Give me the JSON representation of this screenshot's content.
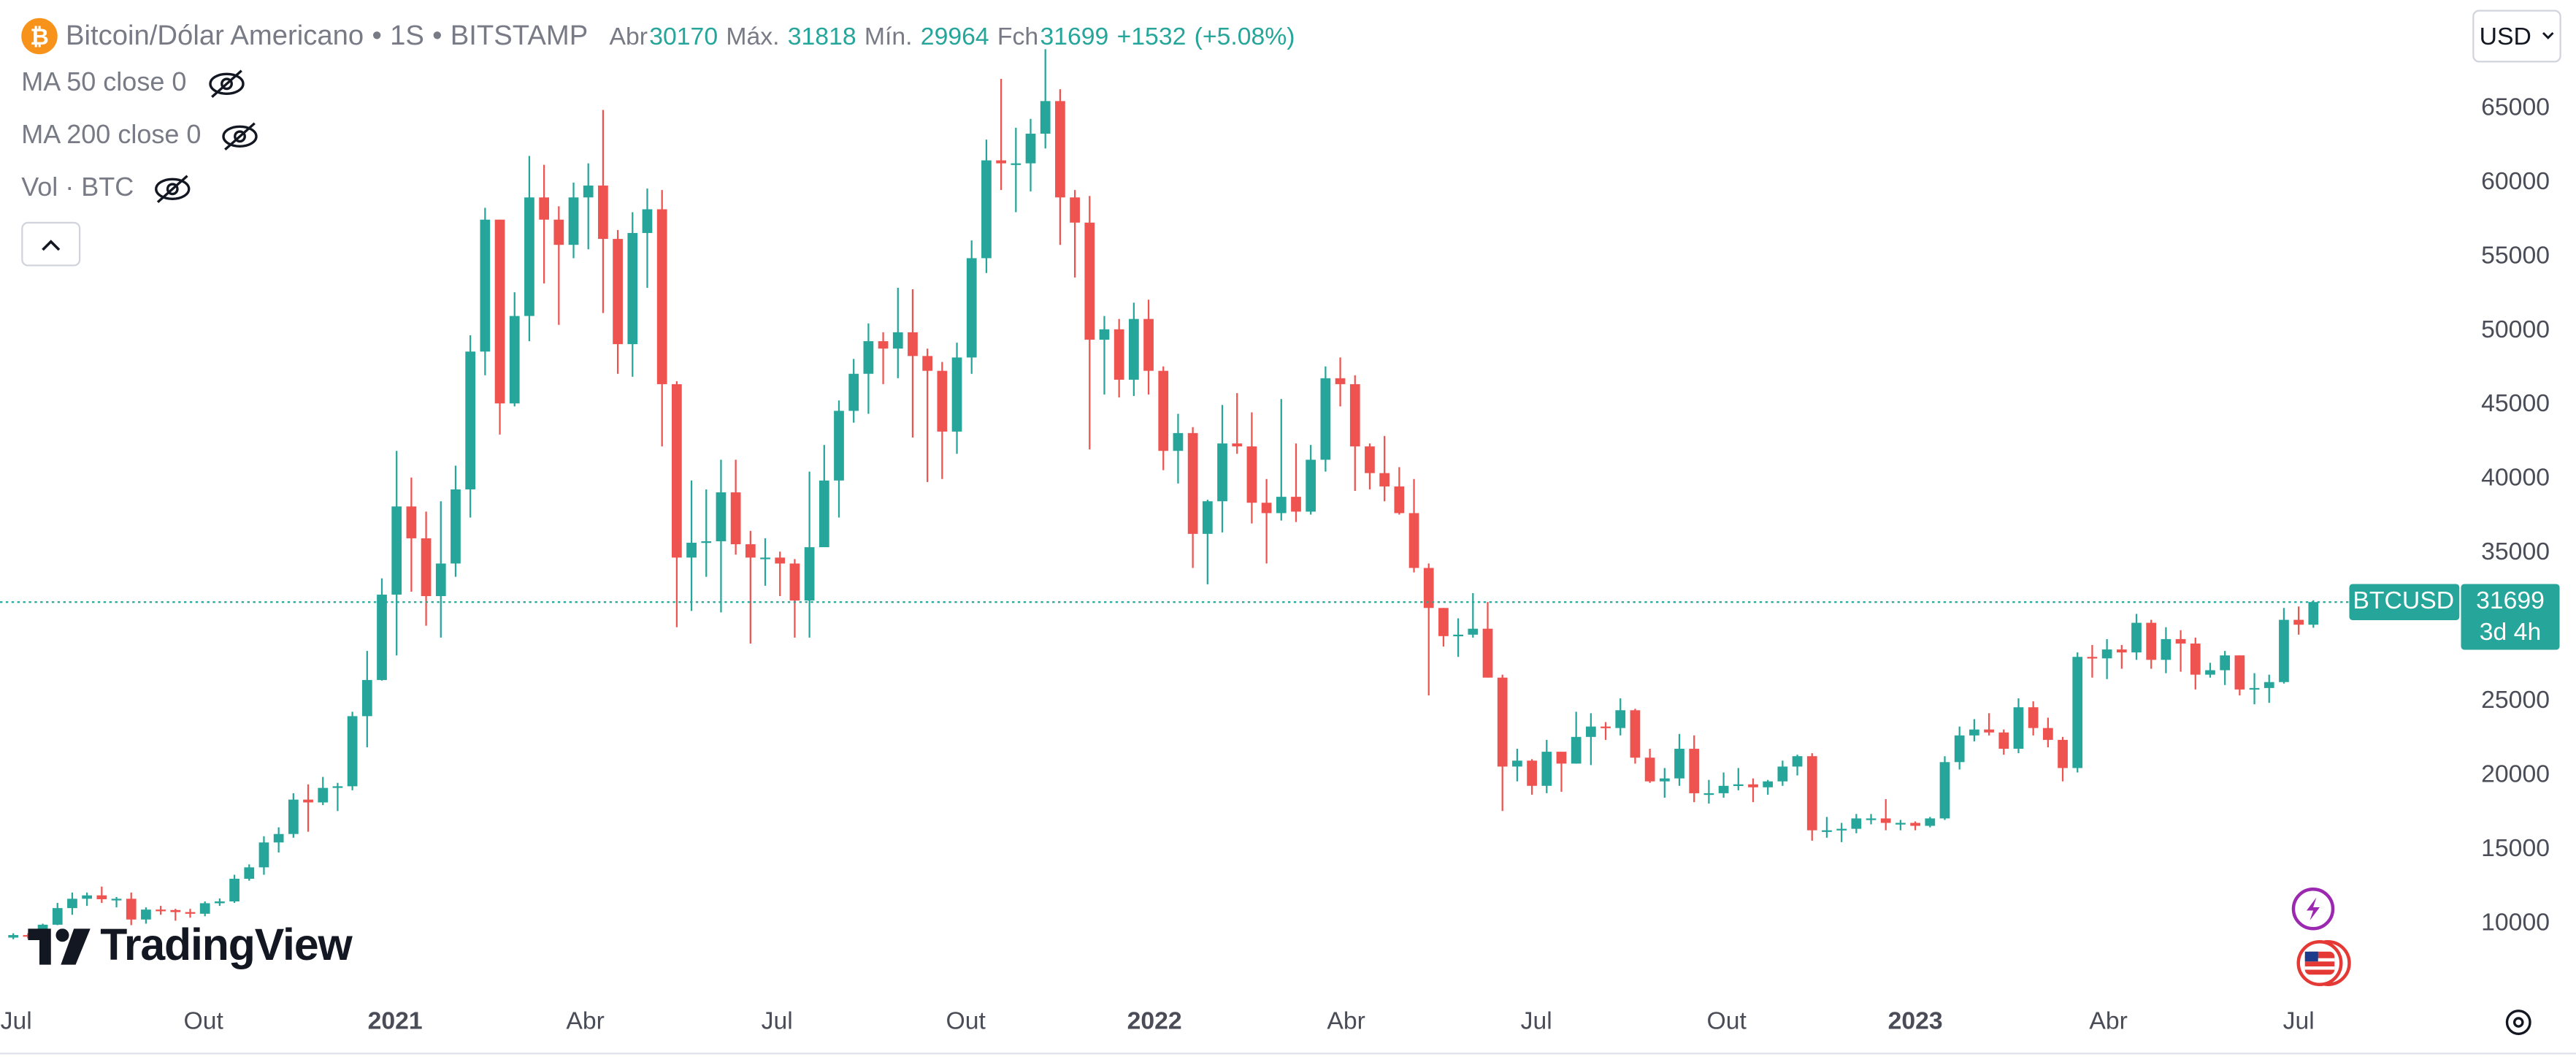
{
  "header": {
    "symbol": "Bitcoin/Dólar Americano",
    "interval": "1S",
    "exchange": "BITSTAMP",
    "open_label": "Abr",
    "high_label": "Máx.",
    "low_label": "Mín.",
    "close_label": "Fch",
    "change": "+1532",
    "change_pct": "(+5.08%)",
    "currency": "USD"
  },
  "indicators": [
    "MA 50 close 0",
    "MA 200 close 0",
    "Vol · BTC"
  ],
  "brand": "TradingView",
  "chart_data": {
    "type": "candlestick",
    "symbol_label": "BTCUSD",
    "countdown": "3d 4h",
    "up_color": "#26a69a",
    "down_color": "#ef5350",
    "grid": false,
    "xlim": [
      -0.9,
      165.9
    ],
    "ylim": [
      5230,
      72320
    ],
    "yticks": [
      10000,
      15000,
      20000,
      25000,
      30000,
      35000,
      40000,
      45000,
      50000,
      55000,
      60000,
      65000
    ],
    "xticks": [
      {
        "value": 0.2,
        "label": "Jul"
      },
      {
        "value": 12.9,
        "label": "Out"
      },
      {
        "value": 25.9,
        "label": "2021"
      },
      {
        "value": 38.8,
        "label": "Abr"
      },
      {
        "value": 51.8,
        "label": "Jul"
      },
      {
        "value": 64.6,
        "label": "Out"
      },
      {
        "value": 77.4,
        "label": "2022"
      },
      {
        "value": 90.4,
        "label": "Abr"
      },
      {
        "value": 103.3,
        "label": "Jul"
      },
      {
        "value": 116.2,
        "label": "Out"
      },
      {
        "value": 129.0,
        "label": "2023"
      },
      {
        "value": 142.1,
        "label": "Abr"
      },
      {
        "value": 155.0,
        "label": "Jul"
      }
    ],
    "open": [
      9060,
      9230,
      9160,
      9930,
      11050,
      11680,
      11910,
      11650,
      11680,
      10280,
      10950,
      10920,
      10780,
      10670,
      11380,
      11500,
      13030,
      13800,
      15480,
      16050,
      18370,
      18180,
      19160,
      19270,
      24000,
      26440,
      32200,
      38150,
      36000,
      32100,
      34300,
      39300,
      48600,
      57500,
      45100,
      51000,
      59000,
      57500,
      55800,
      59000,
      59800,
      56200,
      49100,
      56600,
      58200,
      46400,
      34700,
      35700,
      35800,
      39100,
      35600,
      34700,
      34700,
      34300,
      31800,
      35400,
      39900,
      44600,
      47100,
      49300,
      48800,
      49900,
      48300,
      47300,
      43200,
      48200,
      54900,
      61500,
      61300,
      61300,
      63300,
      65500,
      59000,
      57300,
      49400,
      50100,
      46700,
      50800,
      47300,
      41900,
      43100,
      36300,
      38500,
      42400,
      42200,
      38400,
      37700,
      38800,
      37800,
      41300,
      46800,
      46400,
      42200,
      40400,
      39500,
      37700,
      34000,
      31300,
      29400,
      29500,
      29900,
      26600,
      20600,
      21000,
      19300,
      21600,
      20800,
      22600,
      23300,
      23200,
      24400,
      21200,
      19600,
      19800,
      21800,
      18800,
      18800,
      19300,
      19400,
      19200,
      19600,
      20600,
      21300,
      16300,
      16300,
      16400,
      17100,
      17100,
      16800,
      16800,
      16600,
      17100,
      20900,
      22700,
      23100,
      22900,
      21800,
      24600,
      23200,
      22400,
      20500,
      28000,
      27900,
      28500,
      28300,
      30300,
      27800,
      29200,
      28900,
      26800,
      27100,
      28100,
      25800,
      25900,
      26300,
      30500,
      30170
    ],
    "high": [
      9350,
      9350,
      10000,
      11400,
      12100,
      12100,
      12500,
      11800,
      12100,
      11100,
      11200,
      11000,
      11000,
      11500,
      11700,
      13300,
      14000,
      15900,
      16500,
      18800,
      19400,
      19900,
      19500,
      24300,
      28400,
      33300,
      41900,
      40100,
      37800,
      38500,
      40900,
      49700,
      58300,
      57500,
      52600,
      61800,
      61200,
      58400,
      60000,
      61300,
      64900,
      56800,
      58000,
      59600,
      59500,
      46600,
      39900,
      39300,
      41300,
      41300,
      36500,
      36000,
      35100,
      34600,
      40500,
      42300,
      45300,
      48100,
      50500,
      49900,
      52900,
      52800,
      48800,
      47900,
      49200,
      56100,
      62900,
      67000,
      63700,
      64300,
      69000,
      66300,
      59500,
      59100,
      51000,
      50800,
      51900,
      52100,
      47600,
      44400,
      43500,
      38600,
      45000,
      45800,
      44500,
      40000,
      45400,
      42400,
      42300,
      47600,
      48200,
      47000,
      42400,
      42900,
      40800,
      40000,
      34300,
      31300,
      30600,
      32300,
      31700,
      26800,
      21800,
      21100,
      22400,
      21600,
      24300,
      24200,
      23600,
      25200,
      24500,
      21800,
      20500,
      22800,
      22700,
      19700,
      20200,
      20500,
      19800,
      19700,
      21000,
      21400,
      21500,
      17200,
      16800,
      17400,
      17400,
      18400,
      17000,
      16900,
      17200,
      21300,
      23300,
      23800,
      24200,
      23100,
      25200,
      25000,
      23900,
      22600,
      28300,
      28800,
      29200,
      28800,
      30900,
      30500,
      30000,
      29800,
      29300,
      27600,
      28400,
      28100,
      26900,
      26800,
      31300,
      31400,
      31818
    ],
    "low": [
      8950,
      9000,
      9100,
      9900,
      10600,
      11200,
      11400,
      11100,
      9900,
      10000,
      10600,
      10200,
      10400,
      10500,
      11200,
      11400,
      12900,
      13300,
      14800,
      15800,
      16200,
      18000,
      17600,
      19000,
      21900,
      26400,
      28100,
      32400,
      30100,
      29300,
      33400,
      37400,
      47000,
      43000,
      44900,
      49300,
      53200,
      50400,
      54900,
      55500,
      51200,
      47100,
      46900,
      52900,
      42200,
      30000,
      31100,
      33400,
      31000,
      34900,
      28900,
      32800,
      32100,
      29300,
      29300,
      35700,
      37400,
      43800,
      44400,
      46400,
      46800,
      42800,
      39800,
      40000,
      41700,
      47100,
      53900,
      59500,
      58000,
      59400,
      62300,
      55800,
      53600,
      42000,
      45700,
      45500,
      45600,
      45700,
      40600,
      39700,
      34000,
      32900,
      36400,
      41700,
      37000,
      34300,
      37200,
      37100,
      37600,
      40500,
      44900,
      39200,
      39300,
      38500,
      37600,
      33700,
      25400,
      28700,
      28000,
      29300,
      26600,
      17600,
      19600,
      18700,
      18800,
      18900,
      20800,
      20700,
      22400,
      22700,
      20800,
      19500,
      18500,
      19300,
      18200,
      18100,
      18500,
      19000,
      18200,
      18700,
      19300,
      20000,
      15600,
      15800,
      15500,
      16100,
      16700,
      16300,
      16300,
      16300,
      16500,
      17000,
      20400,
      22300,
      22700,
      21400,
      21500,
      22700,
      21900,
      19600,
      20200,
      26600,
      26500,
      27200,
      27800,
      27200,
      26900,
      27000,
      25800,
      26600,
      26100,
      25400,
      24800,
      24900,
      26200,
      29500,
      29964
    ],
    "close": [
      9230,
      9160,
      9930,
      11050,
      11680,
      11910,
      11650,
      11680,
      10280,
      10950,
      10920,
      10780,
      10670,
      11380,
      11500,
      13030,
      13800,
      15480,
      16050,
      18370,
      18180,
      19160,
      19270,
      24000,
      26440,
      32200,
      38150,
      36000,
      32100,
      34300,
      39300,
      48600,
      57500,
      45100,
      51000,
      59000,
      57500,
      55800,
      59000,
      59800,
      56200,
      49100,
      56600,
      58200,
      46400,
      34700,
      35700,
      35800,
      39100,
      35600,
      34700,
      34700,
      34300,
      31800,
      35400,
      39900,
      44600,
      47100,
      49300,
      48800,
      49900,
      48300,
      47300,
      43200,
      48200,
      54900,
      61500,
      61300,
      61300,
      63300,
      65500,
      59000,
      57300,
      49400,
      50100,
      46700,
      50800,
      47300,
      41900,
      43100,
      36300,
      38500,
      42400,
      42200,
      38400,
      37700,
      38800,
      37800,
      41300,
      46800,
      46400,
      42200,
      40400,
      39500,
      37700,
      34000,
      31300,
      29400,
      29500,
      29900,
      26600,
      20600,
      21000,
      19300,
      21600,
      20800,
      22600,
      23300,
      23200,
      24400,
      21200,
      19600,
      19800,
      21800,
      18800,
      18800,
      19300,
      19400,
      19200,
      19600,
      20600,
      21300,
      16300,
      16300,
      16400,
      17100,
      17100,
      16800,
      16800,
      16600,
      17100,
      20900,
      22700,
      23100,
      22900,
      21800,
      24600,
      23200,
      22400,
      20500,
      28000,
      27900,
      28500,
      28300,
      30300,
      27800,
      29200,
      28900,
      26800,
      27100,
      28100,
      25800,
      25900,
      26300,
      30500,
      30170,
      31699
    ]
  }
}
